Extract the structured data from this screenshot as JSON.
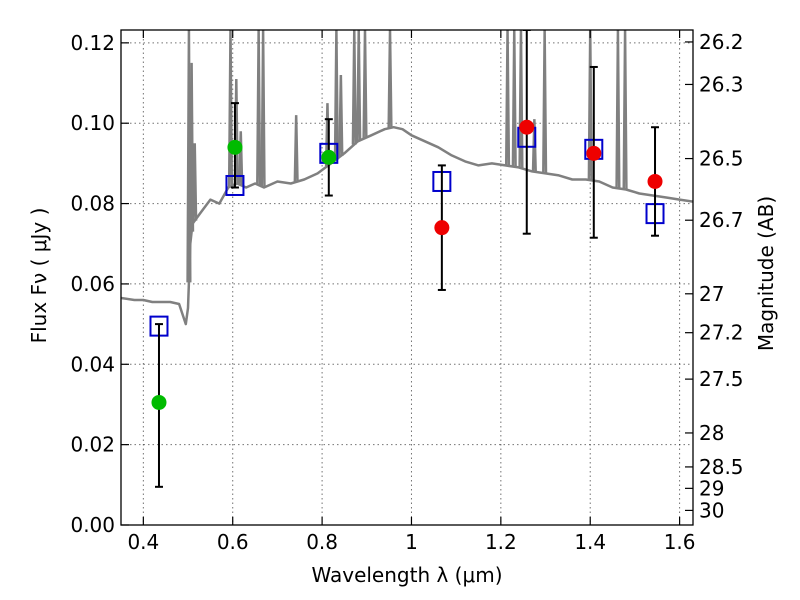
{
  "chart_data": {
    "type": "scatter",
    "xlabel": "Wavelength  λ (μm)",
    "ylabel": "Flux  Fν  ( μJy )",
    "ylabel2": "Magnitude (AB)",
    "xlim": [
      0.35,
      1.63
    ],
    "ylim": [
      0.0,
      0.1232
    ],
    "x_ticks": [
      0.4,
      0.6,
      0.8,
      1.0,
      1.2,
      1.4,
      1.6
    ],
    "x_tick_labels": [
      "0.4",
      "0.6",
      "0.8",
      "1",
      "1.2",
      "1.4",
      "1.6"
    ],
    "y_ticks": [
      0.0,
      0.02,
      0.04,
      0.06,
      0.08,
      0.1,
      0.12
    ],
    "y_tick_labels": [
      "0.00",
      "0.02",
      "0.04",
      "0.06",
      "0.08",
      "0.10",
      "0.12"
    ],
    "mag_ticks": [
      26.2,
      26.3,
      26.5,
      26.7,
      27,
      27.2,
      27.5,
      28,
      28.5,
      29,
      30
    ],
    "mag_tick_labels": [
      "26.2",
      "26.3",
      "26.5",
      "26.7",
      "27",
      "27.2",
      "27.5",
      "28",
      "28.5",
      "29",
      "30"
    ],
    "grid": true,
    "colors": {
      "model_sed": "#808080",
      "optical_points": "#00bb00",
      "nir_points": "#ee0000",
      "model_fluxes": "#0000cc",
      "errorbars": "#000000"
    },
    "series": [
      {
        "kind": "line",
        "x": [
          0.35,
          0.38,
          0.4,
          0.42,
          0.44,
          0.46,
          0.48,
          0.495,
          0.5,
          0.505,
          0.51,
          0.53,
          0.55,
          0.57,
          0.59,
          0.61,
          0.63,
          0.65,
          0.67,
          0.7,
          0.73,
          0.76,
          0.79,
          0.82,
          0.85,
          0.88,
          0.91,
          0.94,
          0.96,
          0.98,
          1.0,
          1.03,
          1.06,
          1.09,
          1.12,
          1.15,
          1.18,
          1.21,
          1.24,
          1.27,
          1.3,
          1.33,
          1.36,
          1.39,
          1.42,
          1.45,
          1.48,
          1.51,
          1.54,
          1.57,
          1.6,
          1.63
        ],
        "y": [
          0.0565,
          0.056,
          0.056,
          0.0555,
          0.0555,
          0.0555,
          0.055,
          0.05,
          0.054,
          0.07,
          0.075,
          0.078,
          0.081,
          0.08,
          0.084,
          0.085,
          0.084,
          0.085,
          0.084,
          0.0855,
          0.085,
          0.086,
          0.0875,
          0.09,
          0.0925,
          0.0955,
          0.097,
          0.0985,
          0.099,
          0.0985,
          0.097,
          0.0955,
          0.094,
          0.092,
          0.0905,
          0.0895,
          0.09,
          0.0895,
          0.089,
          0.088,
          0.0875,
          0.087,
          0.086,
          0.086,
          0.0855,
          0.084,
          0.0835,
          0.0825,
          0.082,
          0.0815,
          0.081,
          0.0805
        ]
      },
      {
        "kind": "emission_lines",
        "x": [
          0.502,
          0.508,
          0.515,
          0.595,
          0.608,
          0.618,
          0.658,
          0.668,
          0.742,
          0.812,
          0.832,
          0.842,
          0.872,
          0.882,
          0.896,
          0.952,
          1.215,
          1.23,
          1.245,
          1.275,
          1.298,
          1.4,
          1.462,
          1.478
        ],
        "y": [
          0.1232,
          0.115,
          0.095,
          0.1232,
          0.111,
          0.098,
          0.1232,
          0.1232,
          0.102,
          0.105,
          0.1232,
          0.112,
          0.1232,
          0.1232,
          0.1232,
          0.1232,
          0.1232,
          0.1232,
          0.1232,
          0.101,
          0.1232,
          0.1232,
          0.1232,
          0.1232
        ]
      },
      {
        "kind": "points",
        "x": [
          0.435,
          0.605,
          0.815
        ],
        "y": [
          0.0305,
          0.094,
          0.0915
        ],
        "yerr_low": [
          0.021,
          0.01,
          0.0095
        ],
        "yerr_high": [
          0.0195,
          0.011,
          0.0095
        ]
      },
      {
        "kind": "points",
        "x": [
          1.068,
          1.258,
          1.408,
          1.545
        ],
        "y": [
          0.074,
          0.099,
          0.0925,
          0.0855
        ],
        "yerr_low": [
          0.0155,
          0.0265,
          0.021,
          0.0135
        ],
        "yerr_high": [
          0.0155,
          0.0242,
          0.0215,
          0.0135
        ]
      },
      {
        "kind": "squares",
        "x": [
          0.435,
          0.605,
          0.815,
          1.068,
          1.258,
          1.408,
          1.545
        ],
        "y": [
          0.0495,
          0.0845,
          0.0925,
          0.0855,
          0.0965,
          0.0935,
          0.0775
        ]
      }
    ]
  }
}
